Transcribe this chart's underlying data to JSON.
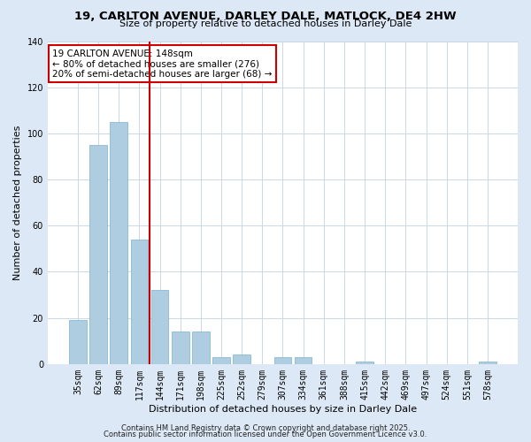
{
  "title_line1": "19, CARLTON AVENUE, DARLEY DALE, MATLOCK, DE4 2HW",
  "title_line2": "Size of property relative to detached houses in Darley Dale",
  "xlabel": "Distribution of detached houses by size in Darley Dale",
  "ylabel": "Number of detached properties",
  "bar_labels": [
    "35sqm",
    "62sqm",
    "89sqm",
    "117sqm",
    "144sqm",
    "171sqm",
    "198sqm",
    "225sqm",
    "252sqm",
    "279sqm",
    "307sqm",
    "334sqm",
    "361sqm",
    "388sqm",
    "415sqm",
    "442sqm",
    "469sqm",
    "497sqm",
    "524sqm",
    "551sqm",
    "578sqm"
  ],
  "bar_values": [
    19,
    95,
    105,
    54,
    32,
    14,
    14,
    3,
    4,
    0,
    3,
    3,
    0,
    0,
    1,
    0,
    0,
    0,
    0,
    0,
    1
  ],
  "bar_color": "#aecde0",
  "vline_color": "#cc0000",
  "vline_index": 3.5,
  "ylim": [
    0,
    140
  ],
  "yticks": [
    0,
    20,
    40,
    60,
    80,
    100,
    120,
    140
  ],
  "annotation_title": "19 CARLTON AVENUE: 148sqm",
  "annotation_line2": "← 80% of detached houses are smaller (276)",
  "annotation_line3": "20% of semi-detached houses are larger (68) →",
  "annotation_box_facecolor": "#ffffff",
  "annotation_box_edgecolor": "#cc0000",
  "footer_line1": "Contains HM Land Registry data © Crown copyright and database right 2025.",
  "footer_line2": "Contains public sector information licensed under the Open Government Licence v3.0.",
  "bg_color": "#dce8f5",
  "plot_bg_color": "#ffffff",
  "title_fontsize": 9.5,
  "subtitle_fontsize": 8,
  "axis_label_fontsize": 8,
  "tick_fontsize": 7,
  "annotation_fontsize": 7.5,
  "footer_fontsize": 6
}
